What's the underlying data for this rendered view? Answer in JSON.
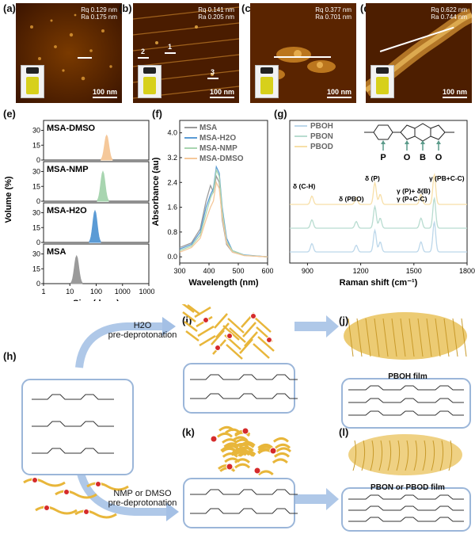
{
  "panels": {
    "a": {
      "label": "(a)",
      "rq": "Rq 0.129 nm",
      "ra": "Ra 0.175 nm",
      "scale": "100 nm"
    },
    "b": {
      "label": "(b)",
      "rq": "Rq 0.141 nm",
      "ra": "Ra 0.205 nm",
      "scale": "100 nm",
      "markers": [
        "1",
        "2",
        "3"
      ]
    },
    "c": {
      "label": "(c)",
      "rq": "Rq 0.377 nm",
      "ra": "Ra 0.701 nm",
      "scale": "100 nm"
    },
    "d": {
      "label": "(d)",
      "rq": "Rq 0.622 nm",
      "ra": "Ra 0.744 nm",
      "scale": "100 nm"
    },
    "e": {
      "label": "(e)"
    },
    "f": {
      "label": "(f)"
    },
    "g": {
      "label": "(g)"
    },
    "h": {
      "label": "(h)"
    },
    "i": {
      "label": "(i)"
    },
    "j": {
      "label": "(j)"
    },
    "k": {
      "label": "(k)"
    },
    "l": {
      "label": "(l)"
    }
  },
  "scheme": {
    "step_h2o": "H2O",
    "step_h2o_sub": "pre-deprotonation",
    "step_nmp": "NMP or DMSO",
    "step_nmp_sub": "pre-deprotonation",
    "film_j": "PBOH film",
    "film_l": "PBON or PBOD film",
    "structure_labels": [
      "P",
      "O",
      "B",
      "O"
    ]
  },
  "colors": {
    "msa": "#9a9a9a",
    "h2o": "#5b9bd5",
    "nmp": "#a8d5b0",
    "dmso": "#f5c89a",
    "pboh": "#bcd7ea",
    "pbon": "#b8dcd0",
    "pbod": "#f7dfa8",
    "arrow": "#8db0de",
    "fiber": "#e8b63a",
    "dot": "#d52b2b"
  },
  "chart_data": [
    {
      "type": "area",
      "title": "",
      "xlabel": "Size (d.nm)",
      "ylabel": "Volume (%)",
      "xscale": "log",
      "xlim": [
        1,
        10000
      ],
      "xticks": [
        "1",
        "10",
        "100",
        "1000",
        "10000"
      ],
      "yticks": [
        "0",
        "15",
        "30"
      ],
      "ylim": [
        0,
        40
      ],
      "series": [
        {
          "name": "MSA-DMSO",
          "peak": 250,
          "height": 25
        },
        {
          "name": "MSA-NMP",
          "peak": 180,
          "height": 30
        },
        {
          "name": "MSA-H2O",
          "peak": 90,
          "height": 32
        },
        {
          "name": "MSA",
          "peak": 18,
          "height": 28
        }
      ]
    },
    {
      "type": "line",
      "title": "",
      "xlabel": "Wavelength (nm)",
      "ylabel": "Absorbance (au)",
      "xlim": [
        300,
        600
      ],
      "ylim": [
        -0.2,
        4.4
      ],
      "xticks": [
        "300",
        "400",
        "500",
        "600"
      ],
      "yticks": [
        "0.0",
        "0.8",
        "1.6",
        "2.4",
        "3.2",
        "4.0"
      ],
      "legend": [
        "MSA",
        "MSA-H2O",
        "MSA-NMP",
        "MSA-DMSO"
      ],
      "series": [
        {
          "name": "MSA",
          "x": [
            300,
            340,
            370,
            390,
            405,
            415,
            425,
            435,
            445,
            460,
            480,
            520,
            600
          ],
          "y": [
            0.3,
            0.45,
            0.9,
            1.8,
            2.3,
            2.1,
            2.6,
            2.4,
            1.2,
            0.4,
            0.15,
            0.05,
            0.0
          ]
        },
        {
          "name": "MSA-H2O",
          "x": [
            300,
            340,
            370,
            390,
            405,
            415,
            425,
            435,
            445,
            460,
            480,
            520,
            600
          ],
          "y": [
            0.25,
            0.4,
            0.8,
            1.6,
            2.0,
            2.2,
            2.9,
            2.7,
            1.6,
            0.6,
            0.2,
            0.06,
            0.0
          ]
        },
        {
          "name": "MSA-NMP",
          "x": [
            300,
            340,
            370,
            390,
            405,
            415,
            425,
            435,
            445,
            460,
            480,
            520,
            600
          ],
          "y": [
            0.2,
            0.35,
            0.7,
            1.4,
            1.9,
            2.1,
            2.8,
            2.6,
            1.5,
            0.5,
            0.2,
            0.05,
            0.0
          ]
        },
        {
          "name": "MSA-DMSO",
          "x": [
            300,
            340,
            370,
            390,
            405,
            415,
            425,
            435,
            445,
            460,
            480,
            520,
            600
          ],
          "y": [
            0.15,
            0.3,
            0.6,
            1.2,
            1.6,
            1.8,
            2.4,
            2.2,
            1.3,
            0.45,
            0.15,
            0.04,
            0.0
          ]
        }
      ]
    },
    {
      "type": "line",
      "title": "",
      "xlabel": "Raman shift (cm-1)",
      "ylabel": "",
      "xlim": [
        800,
        1800
      ],
      "xticks": [
        "900",
        "1200",
        "1500",
        "1800"
      ],
      "legend": [
        "PBOH",
        "PBON",
        "PBOD"
      ],
      "annotations": [
        "δ (C-H)",
        "δ (PBO)",
        "δ (P)",
        "γ (P)+ δ(B)",
        "γ (P+C-C)",
        "γ (PB+C-C)"
      ],
      "peaks": [
        {
          "x": 925,
          "h": 0.25
        },
        {
          "x": 1175,
          "h": 0.2
        },
        {
          "x": 1280,
          "h": 0.65
        },
        {
          "x": 1310,
          "h": 0.3
        },
        {
          "x": 1540,
          "h": 0.3
        },
        {
          "x": 1615,
          "h": 0.9
        }
      ],
      "series": [
        {
          "name": "PBOD"
        },
        {
          "name": "PBON"
        },
        {
          "name": "PBOH"
        }
      ]
    }
  ]
}
